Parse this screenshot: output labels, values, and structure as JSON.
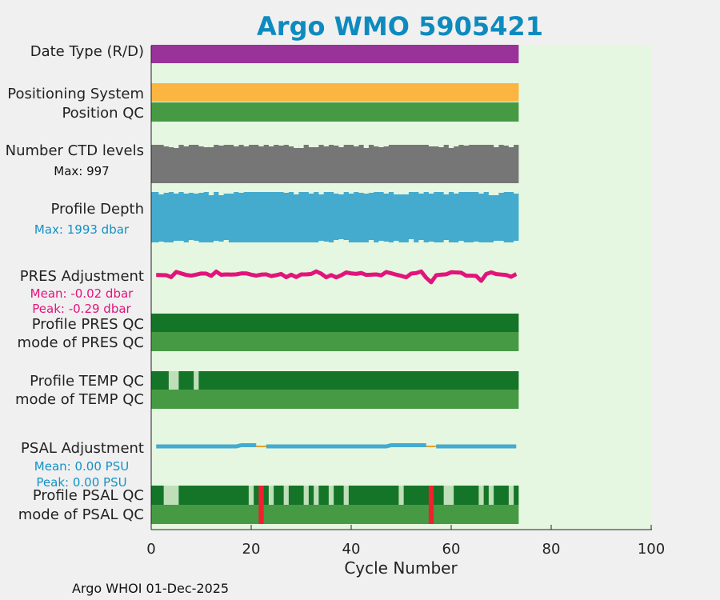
{
  "footer": "Argo WHOI 01-Dec-2025",
  "colors": {
    "background": "#f0f0f0",
    "plot_bg": "#e5f7e0",
    "date_type": "#993399",
    "positioning": "#fbb540",
    "qc_dark": "#147428",
    "qc_mid": "#479a44",
    "qc_light": "#bfdfb8",
    "qc_bad": "#f0202e",
    "ctd": "#767676",
    "depth": "#44abcf",
    "pres_line": "#e2147c",
    "pres_alt": "#e8a12a",
    "psal_line": "#44abcf",
    "psal_alt": "#e8a12a",
    "stat_black": "#111111",
    "stat_blue": "#1591c5",
    "stat_pink": "#e2147c"
  },
  "chart_data": {
    "type": "bar",
    "title": "Argo WMO 5905421",
    "xlabel": "Cycle Number",
    "xlim": [
      0,
      100
    ],
    "xticks": [
      0,
      20,
      40,
      60,
      80,
      100
    ],
    "n_cycles": 73,
    "rows": [
      {
        "label": "Date Type (R/D)",
        "kind": "solid",
        "color_key": "date_type"
      },
      {
        "label": "Positioning System",
        "kind": "solid",
        "color_key": "positioning"
      },
      {
        "label": "Position QC",
        "kind": "solid",
        "color_key": "qc_mid"
      },
      {
        "label": "Number CTD levels",
        "kind": "jagged",
        "color_key": "ctd",
        "stat": "Max: 997",
        "stat_color_key": "stat_black",
        "max": 997
      },
      {
        "label": "Profile Depth",
        "kind": "jagged",
        "color_key": "depth",
        "stat": "Max: 1993 dbar",
        "stat_color_key": "stat_blue",
        "max": 1993
      },
      {
        "label": "PRES Adjustment",
        "kind": "line",
        "color_key": "pres_line",
        "stats": [
          "Mean: -0.02 dbar",
          "Peak: -0.29 dbar"
        ],
        "stat_color_key": "stat_pink",
        "mean": -0.02,
        "peak": -0.29
      },
      {
        "label": "Profile PRES QC",
        "kind": "segments",
        "default_key": "qc_dark"
      },
      {
        "label": "mode of PRES QC",
        "kind": "solid",
        "color_key": "qc_mid"
      },
      {
        "label": "Profile TEMP QC",
        "kind": "segments",
        "default_key": "qc_dark",
        "segments": [
          {
            "from": 3,
            "to": 5,
            "color_key": "qc_light"
          },
          {
            "from": 8,
            "to": 9,
            "color_key": "qc_light"
          }
        ]
      },
      {
        "label": "mode of TEMP QC",
        "kind": "solid",
        "color_key": "qc_mid"
      },
      {
        "label": "PSAL Adjustment",
        "kind": "line",
        "color_key": "psal_line",
        "stats": [
          "Mean: 0.00 PSU",
          "Peak: 0.00 PSU"
        ],
        "stat_color_key": "stat_blue",
        "mean": 0.0,
        "peak": 0.0
      },
      {
        "label": "Profile PSAL QC",
        "kind": "segments",
        "default_key": "qc_dark",
        "segments": [
          {
            "from": 2,
            "to": 5,
            "color_key": "qc_light"
          },
          {
            "from": 19,
            "to": 20,
            "color_key": "qc_light"
          },
          {
            "from": 21,
            "to": 22,
            "color_key": "qc_bad"
          },
          {
            "from": 23,
            "to": 24,
            "color_key": "qc_light"
          },
          {
            "from": 26,
            "to": 27,
            "color_key": "qc_light"
          },
          {
            "from": 30,
            "to": 31,
            "color_key": "qc_light"
          },
          {
            "from": 32,
            "to": 33,
            "color_key": "qc_light"
          },
          {
            "from": 35,
            "to": 36,
            "color_key": "qc_light"
          },
          {
            "from": 38,
            "to": 39,
            "color_key": "qc_light"
          },
          {
            "from": 49,
            "to": 50,
            "color_key": "qc_light"
          },
          {
            "from": 55,
            "to": 56,
            "color_key": "qc_bad"
          },
          {
            "from": 58,
            "to": 60,
            "color_key": "qc_light"
          },
          {
            "from": 65,
            "to": 66,
            "color_key": "qc_light"
          },
          {
            "from": 67,
            "to": 68,
            "color_key": "qc_light"
          },
          {
            "from": 71,
            "to": 72,
            "color_key": "qc_light"
          }
        ]
      },
      {
        "label": "mode of PSAL QC",
        "kind": "segments",
        "default_key": "qc_mid",
        "segments": [
          {
            "from": 21,
            "to": 22,
            "color_key": "qc_bad"
          },
          {
            "from": 55,
            "to": 56,
            "color_key": "qc_bad"
          }
        ]
      }
    ]
  }
}
